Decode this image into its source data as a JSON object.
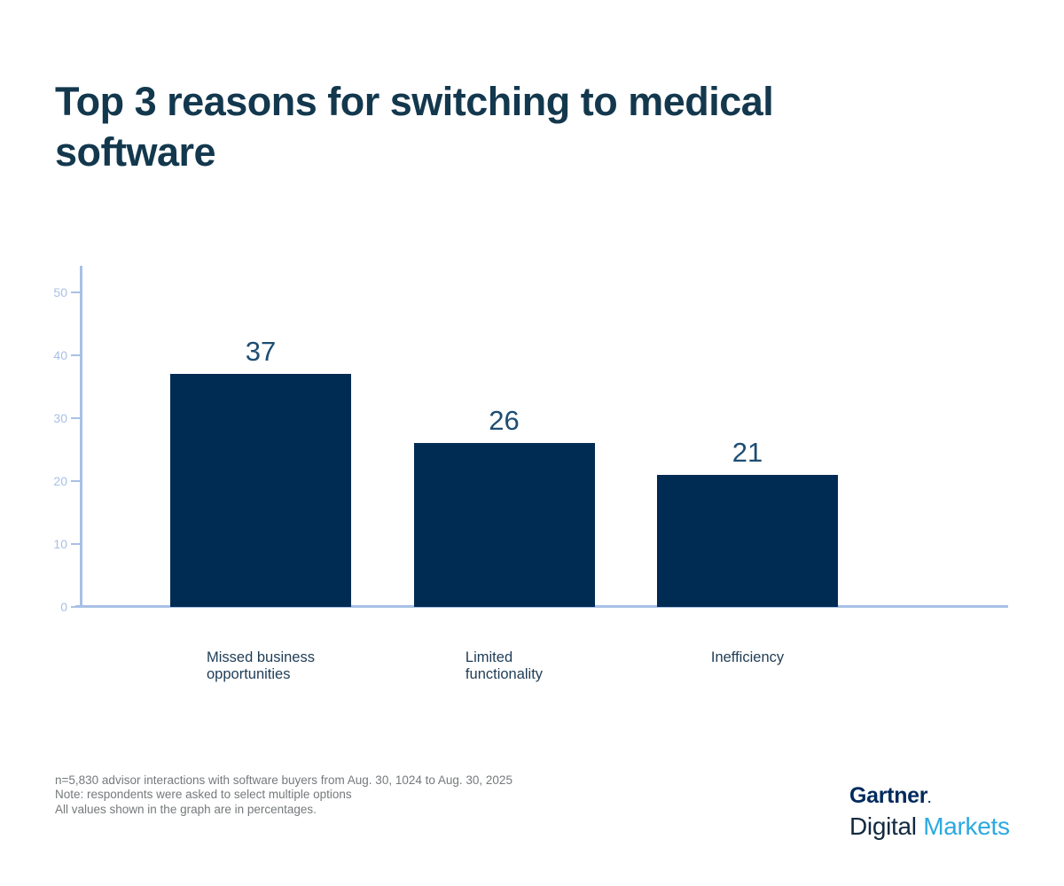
{
  "page": {
    "title": "Top 3 reasons for switching to medical software"
  },
  "chart_data": {
    "type": "bar",
    "title": "Top 3 reasons for switching to medical software",
    "categories": [
      "Missed business opportunities",
      "Limited functionality",
      "Inefficiency"
    ],
    "category_lines": [
      [
        "Missed business",
        "opportunities"
      ],
      [
        "Limited",
        "functionality"
      ],
      [
        "Inefficiency"
      ]
    ],
    "values": [
      37,
      26,
      21
    ],
    "unit": "percent",
    "xlabel": "",
    "ylabel": "",
    "ylim": [
      0,
      54
    ],
    "yticks": [
      0,
      10,
      20,
      30,
      40,
      50
    ],
    "grid": false,
    "legend": "none",
    "colors": {
      "bar": "#002B53",
      "value_label": "#1D4D73",
      "axis": "#A8C0E6",
      "tick_label": "#A8C0E6",
      "category_label": "#1E3C55",
      "title": "#13384E"
    }
  },
  "footnote": {
    "lines": [
      "n=5,830 advisor interactions with software buyers from Aug. 30, 1024 to Aug. 30, 2025",
      "Note: respondents were asked to select multiple options",
      "All values shown in the graph are in percentages."
    ]
  },
  "logo": {
    "line1": "Gartner",
    "line1_mark": ".",
    "line2_part1": "Digital",
    "line2_part2": " Markets",
    "colors": {
      "gartner": "#002A5C",
      "digital": "#13293F",
      "markets": "#2CA9E0"
    }
  }
}
